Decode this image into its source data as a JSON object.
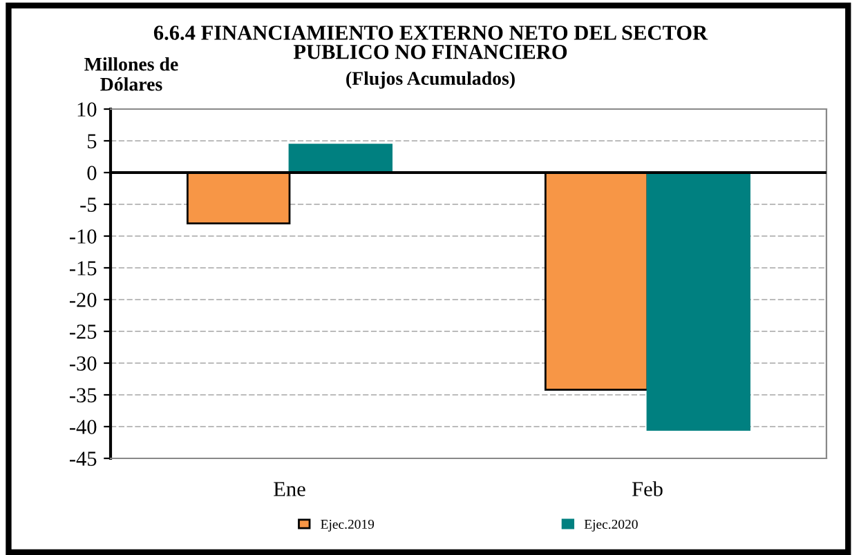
{
  "chart_data": {
    "type": "bar",
    "title": "6.6.4 FINANCIAMIENTO EXTERNO NETO DEL SECTOR\nPUBLICO NO FINANCIERO",
    "subtitle": "(Flujos Acumulados)",
    "ylabel": "Millones de\nDólares",
    "categories": [
      "Ene",
      "Feb"
    ],
    "series": [
      {
        "name": "Ejec.2019",
        "color": "#f79646",
        "values": [
          -8,
          -34.2
        ]
      },
      {
        "name": "Ejec.2020",
        "color": "#008080",
        "values": [
          4.4,
          -40.5
        ]
      }
    ],
    "ylim": [
      -45,
      10
    ],
    "yticks": [
      -45,
      -40,
      -35,
      -30,
      -25,
      -20,
      -15,
      -10,
      -5,
      0,
      5,
      10
    ],
    "grid": "y",
    "legend": "bottom"
  }
}
